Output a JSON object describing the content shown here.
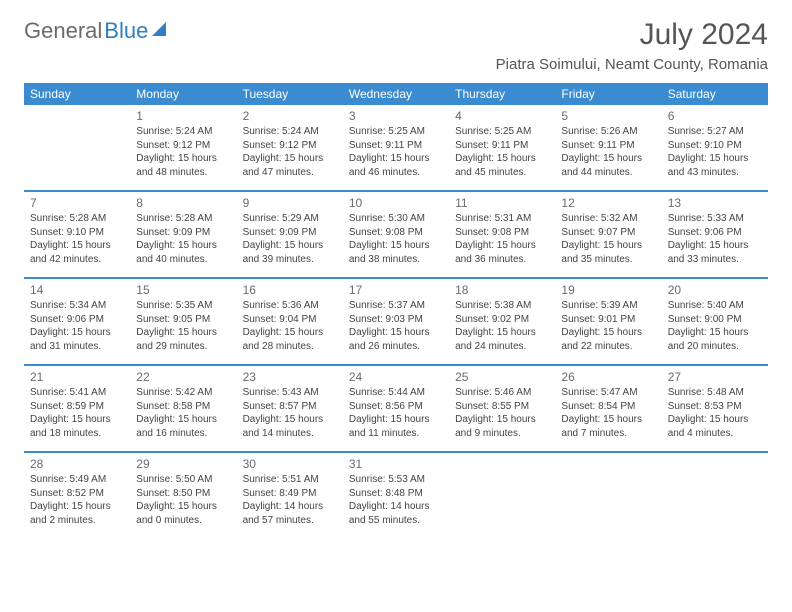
{
  "brand": {
    "part1": "General",
    "part2": "Blue"
  },
  "page": {
    "title": "July 2024",
    "location": "Piatra Soimului, Neamt County, Romania"
  },
  "weekdays": [
    "Sunday",
    "Monday",
    "Tuesday",
    "Wednesday",
    "Thursday",
    "Friday",
    "Saturday"
  ],
  "colors": {
    "header_bg": "#3a8bcf",
    "header_fg": "#ffffff",
    "text": "#444444",
    "title": "#555555"
  },
  "weeks": [
    [
      {
        "num": "",
        "lines": []
      },
      {
        "num": "1",
        "lines": [
          "Sunrise: 5:24 AM",
          "Sunset: 9:12 PM",
          "Daylight: 15 hours",
          "and 48 minutes."
        ]
      },
      {
        "num": "2",
        "lines": [
          "Sunrise: 5:24 AM",
          "Sunset: 9:12 PM",
          "Daylight: 15 hours",
          "and 47 minutes."
        ]
      },
      {
        "num": "3",
        "lines": [
          "Sunrise: 5:25 AM",
          "Sunset: 9:11 PM",
          "Daylight: 15 hours",
          "and 46 minutes."
        ]
      },
      {
        "num": "4",
        "lines": [
          "Sunrise: 5:25 AM",
          "Sunset: 9:11 PM",
          "Daylight: 15 hours",
          "and 45 minutes."
        ]
      },
      {
        "num": "5",
        "lines": [
          "Sunrise: 5:26 AM",
          "Sunset: 9:11 PM",
          "Daylight: 15 hours",
          "and 44 minutes."
        ]
      },
      {
        "num": "6",
        "lines": [
          "Sunrise: 5:27 AM",
          "Sunset: 9:10 PM",
          "Daylight: 15 hours",
          "and 43 minutes."
        ]
      }
    ],
    [
      {
        "num": "7",
        "lines": [
          "Sunrise: 5:28 AM",
          "Sunset: 9:10 PM",
          "Daylight: 15 hours",
          "and 42 minutes."
        ]
      },
      {
        "num": "8",
        "lines": [
          "Sunrise: 5:28 AM",
          "Sunset: 9:09 PM",
          "Daylight: 15 hours",
          "and 40 minutes."
        ]
      },
      {
        "num": "9",
        "lines": [
          "Sunrise: 5:29 AM",
          "Sunset: 9:09 PM",
          "Daylight: 15 hours",
          "and 39 minutes."
        ]
      },
      {
        "num": "10",
        "lines": [
          "Sunrise: 5:30 AM",
          "Sunset: 9:08 PM",
          "Daylight: 15 hours",
          "and 38 minutes."
        ]
      },
      {
        "num": "11",
        "lines": [
          "Sunrise: 5:31 AM",
          "Sunset: 9:08 PM",
          "Daylight: 15 hours",
          "and 36 minutes."
        ]
      },
      {
        "num": "12",
        "lines": [
          "Sunrise: 5:32 AM",
          "Sunset: 9:07 PM",
          "Daylight: 15 hours",
          "and 35 minutes."
        ]
      },
      {
        "num": "13",
        "lines": [
          "Sunrise: 5:33 AM",
          "Sunset: 9:06 PM",
          "Daylight: 15 hours",
          "and 33 minutes."
        ]
      }
    ],
    [
      {
        "num": "14",
        "lines": [
          "Sunrise: 5:34 AM",
          "Sunset: 9:06 PM",
          "Daylight: 15 hours",
          "and 31 minutes."
        ]
      },
      {
        "num": "15",
        "lines": [
          "Sunrise: 5:35 AM",
          "Sunset: 9:05 PM",
          "Daylight: 15 hours",
          "and 29 minutes."
        ]
      },
      {
        "num": "16",
        "lines": [
          "Sunrise: 5:36 AM",
          "Sunset: 9:04 PM",
          "Daylight: 15 hours",
          "and 28 minutes."
        ]
      },
      {
        "num": "17",
        "lines": [
          "Sunrise: 5:37 AM",
          "Sunset: 9:03 PM",
          "Daylight: 15 hours",
          "and 26 minutes."
        ]
      },
      {
        "num": "18",
        "lines": [
          "Sunrise: 5:38 AM",
          "Sunset: 9:02 PM",
          "Daylight: 15 hours",
          "and 24 minutes."
        ]
      },
      {
        "num": "19",
        "lines": [
          "Sunrise: 5:39 AM",
          "Sunset: 9:01 PM",
          "Daylight: 15 hours",
          "and 22 minutes."
        ]
      },
      {
        "num": "20",
        "lines": [
          "Sunrise: 5:40 AM",
          "Sunset: 9:00 PM",
          "Daylight: 15 hours",
          "and 20 minutes."
        ]
      }
    ],
    [
      {
        "num": "21",
        "lines": [
          "Sunrise: 5:41 AM",
          "Sunset: 8:59 PM",
          "Daylight: 15 hours",
          "and 18 minutes."
        ]
      },
      {
        "num": "22",
        "lines": [
          "Sunrise: 5:42 AM",
          "Sunset: 8:58 PM",
          "Daylight: 15 hours",
          "and 16 minutes."
        ]
      },
      {
        "num": "23",
        "lines": [
          "Sunrise: 5:43 AM",
          "Sunset: 8:57 PM",
          "Daylight: 15 hours",
          "and 14 minutes."
        ]
      },
      {
        "num": "24",
        "lines": [
          "Sunrise: 5:44 AM",
          "Sunset: 8:56 PM",
          "Daylight: 15 hours",
          "and 11 minutes."
        ]
      },
      {
        "num": "25",
        "lines": [
          "Sunrise: 5:46 AM",
          "Sunset: 8:55 PM",
          "Daylight: 15 hours",
          "and 9 minutes."
        ]
      },
      {
        "num": "26",
        "lines": [
          "Sunrise: 5:47 AM",
          "Sunset: 8:54 PM",
          "Daylight: 15 hours",
          "and 7 minutes."
        ]
      },
      {
        "num": "27",
        "lines": [
          "Sunrise: 5:48 AM",
          "Sunset: 8:53 PM",
          "Daylight: 15 hours",
          "and 4 minutes."
        ]
      }
    ],
    [
      {
        "num": "28",
        "lines": [
          "Sunrise: 5:49 AM",
          "Sunset: 8:52 PM",
          "Daylight: 15 hours",
          "and 2 minutes."
        ]
      },
      {
        "num": "29",
        "lines": [
          "Sunrise: 5:50 AM",
          "Sunset: 8:50 PM",
          "Daylight: 15 hours",
          "and 0 minutes."
        ]
      },
      {
        "num": "30",
        "lines": [
          "Sunrise: 5:51 AM",
          "Sunset: 8:49 PM",
          "Daylight: 14 hours",
          "and 57 minutes."
        ]
      },
      {
        "num": "31",
        "lines": [
          "Sunrise: 5:53 AM",
          "Sunset: 8:48 PM",
          "Daylight: 14 hours",
          "and 55 minutes."
        ]
      },
      {
        "num": "",
        "lines": []
      },
      {
        "num": "",
        "lines": []
      },
      {
        "num": "",
        "lines": []
      }
    ]
  ]
}
